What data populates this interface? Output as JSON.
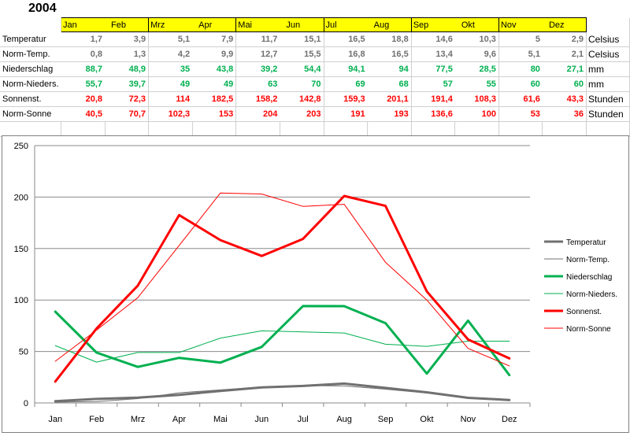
{
  "year": "2004",
  "months": [
    "Jan",
    "Feb",
    "Mrz",
    "Apr",
    "Mai",
    "Jun",
    "Jul",
    "Aug",
    "Sep",
    "Okt",
    "Nov",
    "Dez"
  ],
  "rows": [
    {
      "label": "Temperatur",
      "unit": "Celsius",
      "style": "gray",
      "values": [
        "1,7",
        "3,9",
        "5,1",
        "7,9",
        "11,7",
        "15,1",
        "16,5",
        "18,8",
        "14,6",
        "10,3",
        "5",
        "2,9"
      ]
    },
    {
      "label": "Norm-Temp.",
      "unit": "Celsius",
      "style": "gray",
      "values": [
        "0,8",
        "1,3",
        "4,2",
        "9,9",
        "12,7",
        "15,5",
        "16,8",
        "16,5",
        "13,4",
        "9,6",
        "5,1",
        "2,1"
      ]
    },
    {
      "label": "Niederschlag",
      "unit": "mm",
      "style": "green",
      "values": [
        "88,7",
        "48,9",
        "35",
        "43,8",
        "39,2",
        "54,4",
        "94,1",
        "94",
        "77,5",
        "28,5",
        "80",
        "27,1"
      ]
    },
    {
      "label": "Norm-Nieders.",
      "unit": "mm",
      "style": "green",
      "values": [
        "55,7",
        "39,7",
        "49",
        "49",
        "63",
        "70",
        "69",
        "68",
        "57",
        "55",
        "60",
        "60"
      ]
    },
    {
      "label": "Sonnenst.",
      "unit": "Stunden",
      "style": "red",
      "values": [
        "20,8",
        "72,3",
        "114",
        "182,5",
        "158,2",
        "142,8",
        "159,3",
        "201,1",
        "191,4",
        "108,3",
        "61,6",
        "43,3"
      ]
    },
    {
      "label": "Norm-Sonne",
      "unit": "Stunden",
      "style": "red",
      "values": [
        "40,5",
        "70,7",
        "102,3",
        "153",
        "204",
        "203",
        "191",
        "193",
        "136,6",
        "100",
        "53",
        "36"
      ]
    }
  ],
  "chart_data": {
    "type": "line",
    "categories": [
      "Jan",
      "Feb",
      "Mrz",
      "Apr",
      "Mai",
      "Jun",
      "Jul",
      "Aug",
      "Sep",
      "Okt",
      "Nov",
      "Dez"
    ],
    "ylim": [
      0,
      250
    ],
    "yticks": [
      0,
      50,
      100,
      150,
      200,
      250
    ],
    "grid": true,
    "legend_position": "right",
    "series": [
      {
        "name": "Temperatur",
        "color": "#707070",
        "width": "thick",
        "values": [
          1.7,
          3.9,
          5.1,
          7.9,
          11.7,
          15.1,
          16.5,
          18.8,
          14.6,
          10.3,
          5,
          2.9
        ]
      },
      {
        "name": "Norm-Temp.",
        "color": "#707070",
        "width": "thin",
        "values": [
          0.8,
          1.3,
          4.2,
          9.9,
          12.7,
          15.5,
          16.8,
          16.5,
          13.4,
          9.6,
          5.1,
          2.1
        ]
      },
      {
        "name": "Niederschlag",
        "color": "#00b050",
        "width": "thick",
        "values": [
          88.7,
          48.9,
          35,
          43.8,
          39.2,
          54.4,
          94.1,
          94,
          77.5,
          28.5,
          80,
          27.1
        ]
      },
      {
        "name": "Norm-Nieders.",
        "color": "#00b050",
        "width": "thin",
        "values": [
          55.7,
          39.7,
          49,
          49,
          63,
          70,
          69,
          68,
          57,
          55,
          60,
          60
        ]
      },
      {
        "name": "Sonnenst.",
        "color": "#ff0000",
        "width": "thick",
        "values": [
          20.8,
          72.3,
          114,
          182.5,
          158.2,
          142.8,
          159.3,
          201.1,
          191.4,
          108.3,
          61.6,
          43.3
        ]
      },
      {
        "name": "Norm-Sonne",
        "color": "#ff0000",
        "width": "thin",
        "values": [
          40.5,
          70.7,
          102.3,
          153,
          204,
          203,
          191,
          193,
          136.6,
          100,
          53,
          36
        ]
      }
    ]
  }
}
